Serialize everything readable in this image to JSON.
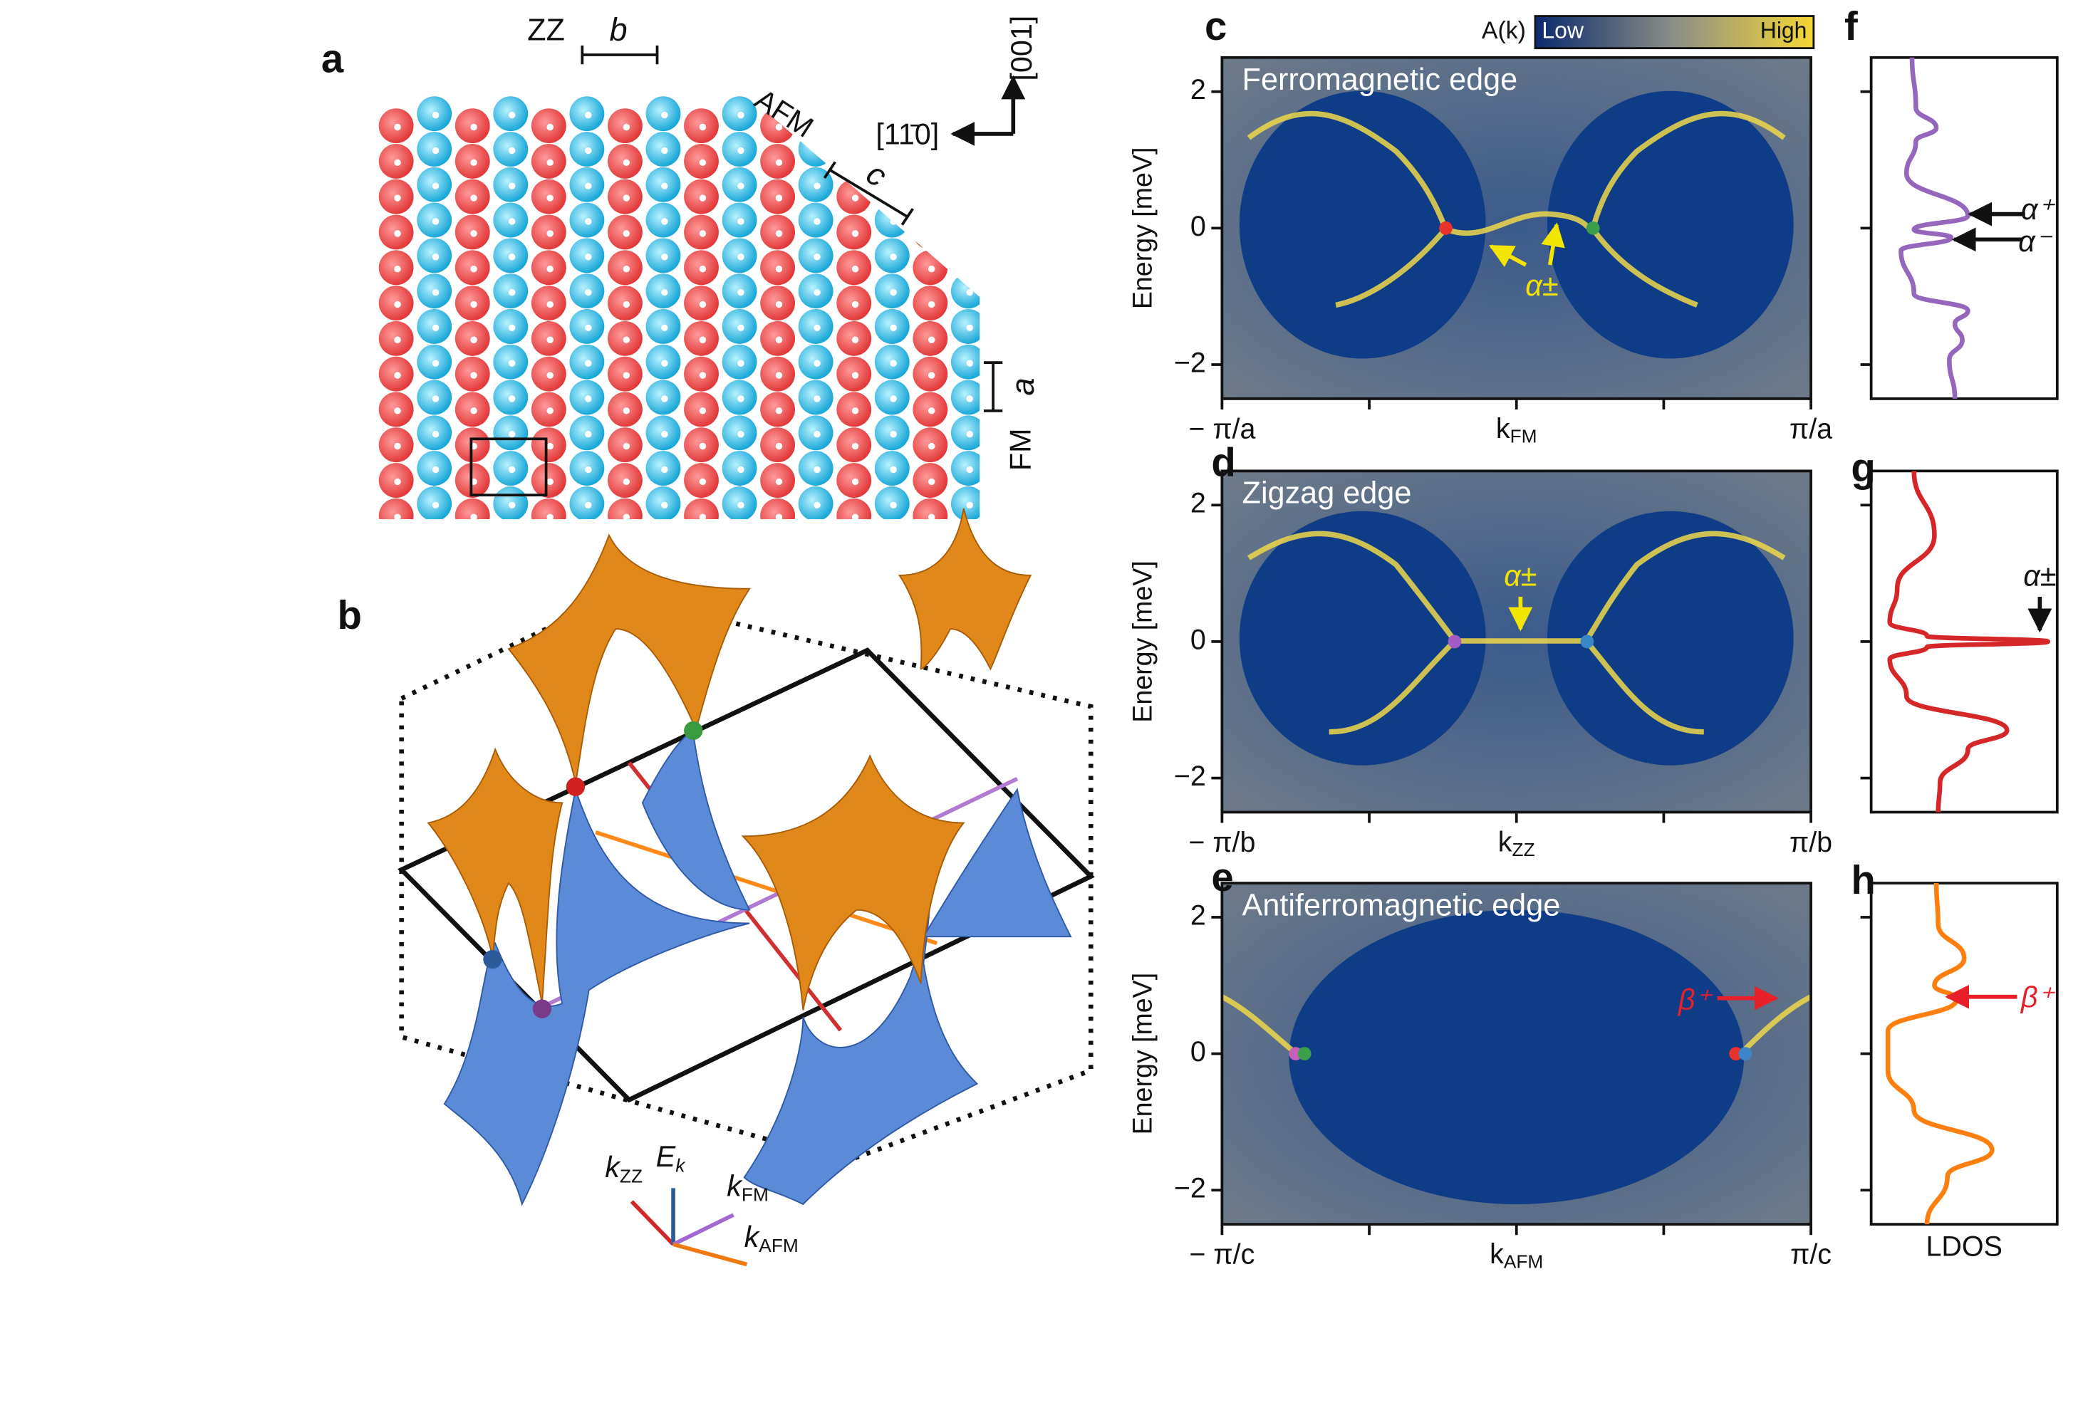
{
  "panel_a": {
    "letter": "a",
    "zz": "ZZ",
    "b": "b",
    "afm": "AFM",
    "c": "c",
    "dir_110": "[11̄0]",
    "dir_001": "[001]",
    "fm": "FM",
    "a": "a"
  },
  "panel_b": {
    "letter": "b",
    "k_zz": "k",
    "k_zz_sub": "ZZ",
    "e_k": "E",
    "e_k_sub": "k",
    "k_fm": "k",
    "k_fm_sub": "FM",
    "k_afm": "k",
    "k_afm_sub": "AFM"
  },
  "colorbar": {
    "label": "A(k)",
    "low": "Low",
    "high": "High"
  },
  "chart_data": [
    {
      "type": "spectral",
      "panel": "c",
      "title": "Ferromagnetic edge",
      "ylabel": "Energy [meV]",
      "xlabel": "k",
      "xlabel_sub": "FM",
      "xlim": [
        -1,
        1
      ],
      "xticks": [
        {
          "value": -1,
          "label": "− π/a"
        },
        {
          "value": 1,
          "label": "π/a"
        }
      ],
      "xminor": [
        -0.5,
        0,
        0.5
      ],
      "ylim": [
        -2.5,
        2.5
      ],
      "yticks": [
        {
          "value": -2,
          "label": "−2"
        },
        0,
        2
      ],
      "nodes": {
        "x": [
          -0.24,
          0.26
        ],
        "y": [
          0,
          0
        ],
        "colors": [
          "#e8322a",
          "#3aa04a"
        ]
      },
      "annotation": "α±"
    },
    {
      "type": "spectral",
      "panel": "d",
      "title": "Zigzag edge",
      "ylabel": "Energy [meV]",
      "xlabel": "k",
      "xlabel_sub": "ZZ",
      "xlim": [
        -1,
        1
      ],
      "xticks": [
        {
          "value": -1,
          "label": "− π/b"
        },
        {
          "value": 1,
          "label": "π/b"
        }
      ],
      "xminor": [
        -0.5,
        0,
        0.5
      ],
      "ylim": [
        -2.5,
        2.5
      ],
      "yticks": [
        {
          "value": -2,
          "label": "−2"
        },
        0,
        2
      ],
      "nodes": {
        "x": [
          -0.21,
          0.24
        ],
        "y": [
          0,
          0
        ],
        "colors": [
          "#a55bc4",
          "#3a86c8"
        ]
      },
      "annotation": "α±"
    },
    {
      "type": "spectral",
      "panel": "e",
      "title": "Antiferromagnetic edge",
      "ylabel": "Energy [meV]",
      "xlabel": "k",
      "xlabel_sub": "AFM",
      "xlim": [
        -1,
        1
      ],
      "xticks": [
        {
          "value": -1,
          "label": "− π/c"
        },
        {
          "value": 1,
          "label": "π/c"
        }
      ],
      "xminor": [
        -0.5,
        0,
        0.5
      ],
      "ylim": [
        -2.5,
        2.5
      ],
      "yticks": [
        {
          "value": -2,
          "label": "−2"
        },
        0,
        2
      ],
      "nodes": {
        "x": [
          -0.75,
          -0.72,
          0.745,
          0.777
        ],
        "y": [
          0,
          0,
          0,
          0
        ],
        "colors": [
          "#c860b8",
          "#3aa04a",
          "#e8322a",
          "#3a86c8"
        ]
      },
      "annotation": "β⁺"
    },
    {
      "type": "line",
      "panel": "f",
      "color": "#9467bd",
      "ylim": [
        -2.5,
        2.5
      ],
      "yticks": [
        -2,
        0,
        2
      ],
      "xlim": [
        0,
        1
      ],
      "energy": [
        2.5,
        1.77,
        1.47,
        1.27,
        0.8,
        0.18,
        -0.02,
        -0.14,
        -0.33,
        -0.96,
        -1.21,
        -1.4,
        -1.64,
        -1.93,
        -2.5
      ],
      "values": [
        0.22,
        0.24,
        0.35,
        0.24,
        0.19,
        0.52,
        0.23,
        0.43,
        0.16,
        0.23,
        0.52,
        0.45,
        0.49,
        0.42,
        0.45
      ],
      "annotations": [
        "α⁺",
        "α⁻"
      ]
    },
    {
      "type": "line",
      "panel": "g",
      "color": "#d62728",
      "ylim": [
        -2.5,
        2.5
      ],
      "yticks": [
        -2,
        0,
        2
      ],
      "xlim": [
        0,
        1
      ],
      "energy": [
        2.5,
        1.56,
        0.78,
        0.28,
        0.08,
        0,
        -0.08,
        -0.26,
        -0.8,
        -1.3,
        -1.58,
        -2.07,
        -2.5
      ],
      "values": [
        0.23,
        0.34,
        0.14,
        0.1,
        0.3,
        0.95,
        0.3,
        0.1,
        0.19,
        0.73,
        0.52,
        0.37,
        0.36
      ],
      "annotations": [
        "α±"
      ]
    },
    {
      "type": "line",
      "panel": "h",
      "color": "#ff7f0e",
      "ylim": [
        -2.5,
        2.5
      ],
      "yticks": [
        -2,
        0,
        2
      ],
      "xlim": [
        0,
        1
      ],
      "energy": [
        2.5,
        1.9,
        1.4,
        1.0,
        0.8,
        0.33,
        -0.25,
        -0.83,
        -1.41,
        -1.8,
        -2.5
      ],
      "values": [
        0.35,
        0.36,
        0.5,
        0.34,
        0.46,
        0.09,
        0.09,
        0.23,
        0.65,
        0.41,
        0.3
      ],
      "annotations": [
        "β⁺"
      ],
      "xlabel": "LDOS"
    }
  ]
}
